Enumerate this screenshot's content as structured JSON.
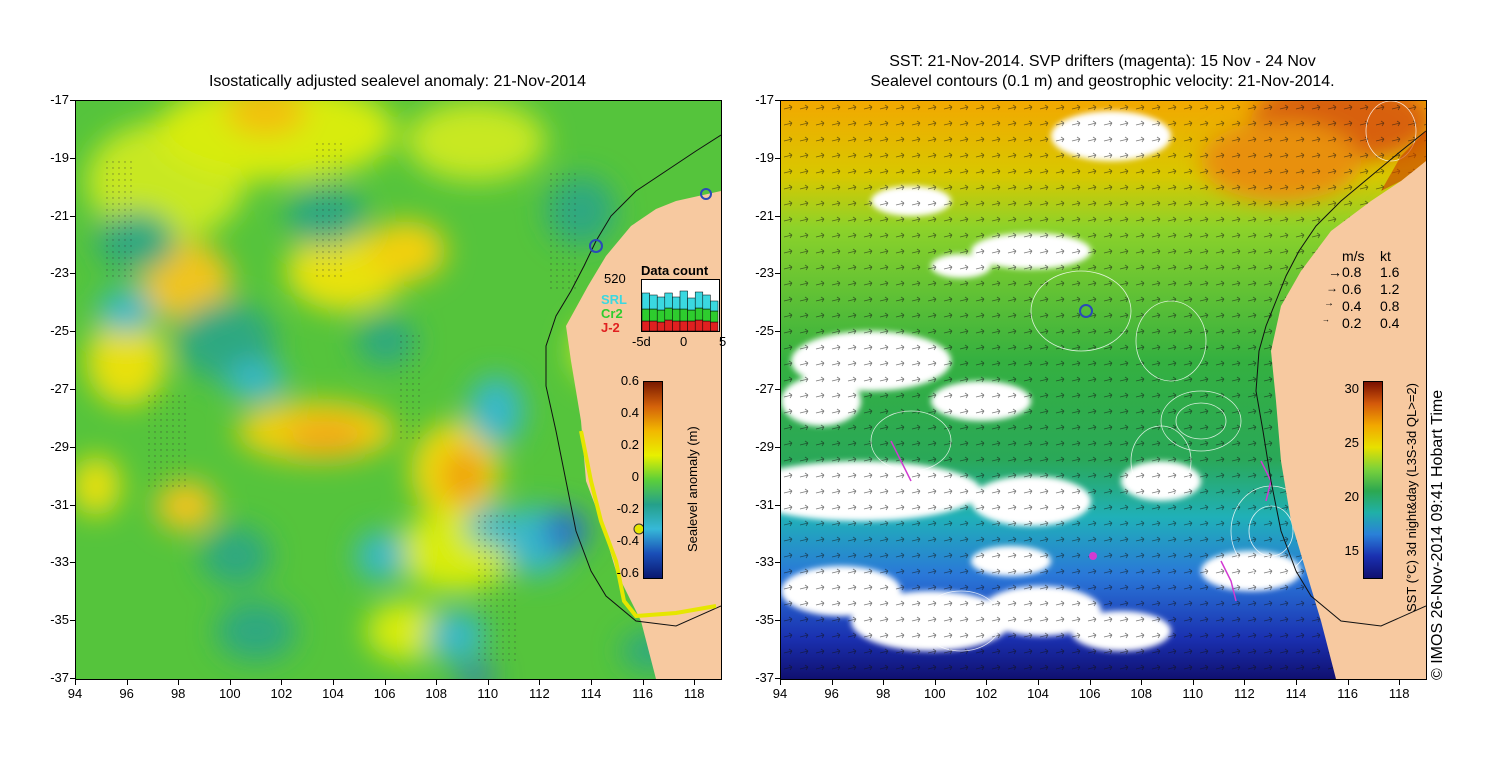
{
  "left_panel": {
    "title": "Isostatically adjusted sealevel anomaly: 21-Nov-2014",
    "colorbar": {
      "label": "Sealevel anomaly (m)",
      "ticks": [
        "0.6",
        "0.4",
        "0.2",
        "0",
        "-0.2",
        "-0.4",
        "-0.6"
      ],
      "colors": [
        "#7a1a00",
        "#d4620a",
        "#f2b800",
        "#e8f000",
        "#5ccf3a",
        "#25a08a",
        "#36b8d8",
        "#1a4fb8",
        "#0a1870"
      ]
    },
    "data_count": {
      "title": "Data count",
      "max_label": "520",
      "series": [
        {
          "name": "SRL",
          "color": "#3ad8e0"
        },
        {
          "name": "Cr2",
          "color": "#2ecc2e"
        },
        {
          "name": "J-2",
          "color": "#e02020"
        }
      ],
      "x_ticks": [
        "-5d",
        "0",
        "5"
      ]
    }
  },
  "right_panel": {
    "title_line1": "SST: 21-Nov-2014. SVP drifters (magenta): 15 Nov - 24 Nov",
    "title_line2": "Sealevel contours (0.1 m) and geostrophic velocity: 21-Nov-2014.",
    "velocity_legend": {
      "header_ms": "m/s",
      "header_kt": "kt",
      "rows": [
        {
          "ms": "0.8",
          "kt": "1.6"
        },
        {
          "ms": "0.6",
          "kt": "1.2"
        },
        {
          "ms": "0.4",
          "kt": "0.8"
        },
        {
          "ms": "0.2",
          "kt": "0.4"
        }
      ]
    },
    "colorbar": {
      "label": "SST (°C) 3d night&day (L3S-3d QL>=2)",
      "ticks": [
        "30",
        "25",
        "20",
        "15"
      ],
      "colors": [
        "#7a1000",
        "#d45a0a",
        "#f2a800",
        "#e8e000",
        "#7cd23a",
        "#2ca850",
        "#20b0a8",
        "#2a80d8",
        "#1a30b0",
        "#101070"
      ]
    }
  },
  "axes": {
    "y_ticks": [
      "-17",
      "-19",
      "-21",
      "-23",
      "-25",
      "-27",
      "-29",
      "-31",
      "-33",
      "-35",
      "-37"
    ],
    "x_ticks": [
      "94",
      "96",
      "98",
      "100",
      "102",
      "104",
      "106",
      "108",
      "110",
      "112",
      "114",
      "116",
      "118"
    ]
  },
  "credit": "© IMOS 26-Nov-2014 09:41 Hobart Time",
  "colors": {
    "land": "#f7c9a0",
    "cloud": "#ffffff",
    "drifter": "#d23ad2"
  }
}
